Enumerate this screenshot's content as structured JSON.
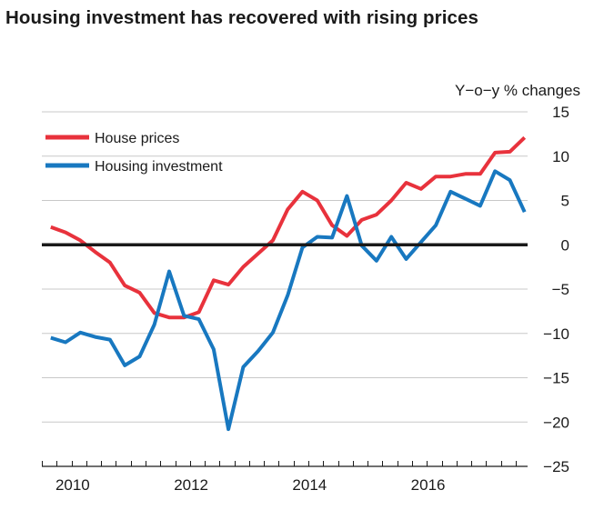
{
  "chart_data": {
    "type": "line",
    "title": "Housing investment has recovered with rising prices",
    "ylabel": "Y−o−y % changes",
    "xlabel": "",
    "ylim": [
      -25,
      15
    ],
    "xlim": [
      2009.6,
      2017.8
    ],
    "yticks": [
      15,
      10,
      5,
      0,
      -5,
      -10,
      -15,
      -20,
      -25
    ],
    "ytick_labels": [
      "15",
      "10",
      "5",
      "0",
      "−5",
      "−10",
      "−15",
      "−20",
      "−25"
    ],
    "xtick_labels": [
      {
        "label": "2010",
        "x": 2010.0
      },
      {
        "label": "2012",
        "x": 2012.0
      },
      {
        "label": "2014",
        "x": 2014.0
      },
      {
        "label": "2016",
        "x": 2016.0
      }
    ],
    "grid": true,
    "legend": "top-left",
    "zero_line": 0,
    "series": [
      {
        "name": "House prices",
        "color": "#e8323c",
        "x": [
          2009.75,
          2010.0,
          2010.25,
          2010.5,
          2010.75,
          2011.0,
          2011.25,
          2011.5,
          2011.75,
          2012.0,
          2012.25,
          2012.5,
          2012.75,
          2013.0,
          2013.25,
          2013.5,
          2013.75,
          2014.0,
          2014.25,
          2014.5,
          2014.75,
          2015.0,
          2015.25,
          2015.5,
          2015.75,
          2016.0,
          2016.25,
          2016.5,
          2016.75,
          2017.0,
          2017.25,
          2017.5,
          2017.75
        ],
        "values": [
          2.0,
          1.4,
          0.5,
          -0.8,
          -2.0,
          -4.6,
          -5.4,
          -7.7,
          -8.2,
          -8.2,
          -7.6,
          -4.0,
          -4.5,
          -2.5,
          -1.0,
          0.5,
          4.0,
          6.0,
          5.0,
          2.2,
          1.0,
          2.8,
          3.4,
          5.0,
          7.0,
          6.3,
          7.7,
          7.7,
          8.0,
          8.0,
          10.4,
          10.5,
          12.1
        ]
      },
      {
        "name": "Housing investment",
        "color": "#1878c0",
        "x": [
          2009.75,
          2010.0,
          2010.25,
          2010.5,
          2010.75,
          2011.0,
          2011.25,
          2011.5,
          2011.75,
          2012.0,
          2012.25,
          2012.5,
          2012.75,
          2013.0,
          2013.25,
          2013.5,
          2013.75,
          2014.0,
          2014.25,
          2014.5,
          2014.75,
          2015.0,
          2015.25,
          2015.5,
          2015.75,
          2016.0,
          2016.25,
          2016.5,
          2016.75,
          2017.0,
          2017.25,
          2017.5,
          2017.75
        ],
        "values": [
          -10.5,
          -11.0,
          -9.9,
          -10.4,
          -10.7,
          -13.6,
          -12.6,
          -9.0,
          -3.0,
          -8.0,
          -8.4,
          -11.8,
          -20.8,
          -13.8,
          -12.0,
          -9.9,
          -5.7,
          -0.3,
          0.9,
          0.8,
          5.5,
          -0.1,
          -1.8,
          0.9,
          -1.6,
          0.3,
          2.2,
          6.0,
          5.2,
          4.4,
          8.3,
          7.3,
          3.7
        ]
      }
    ]
  }
}
